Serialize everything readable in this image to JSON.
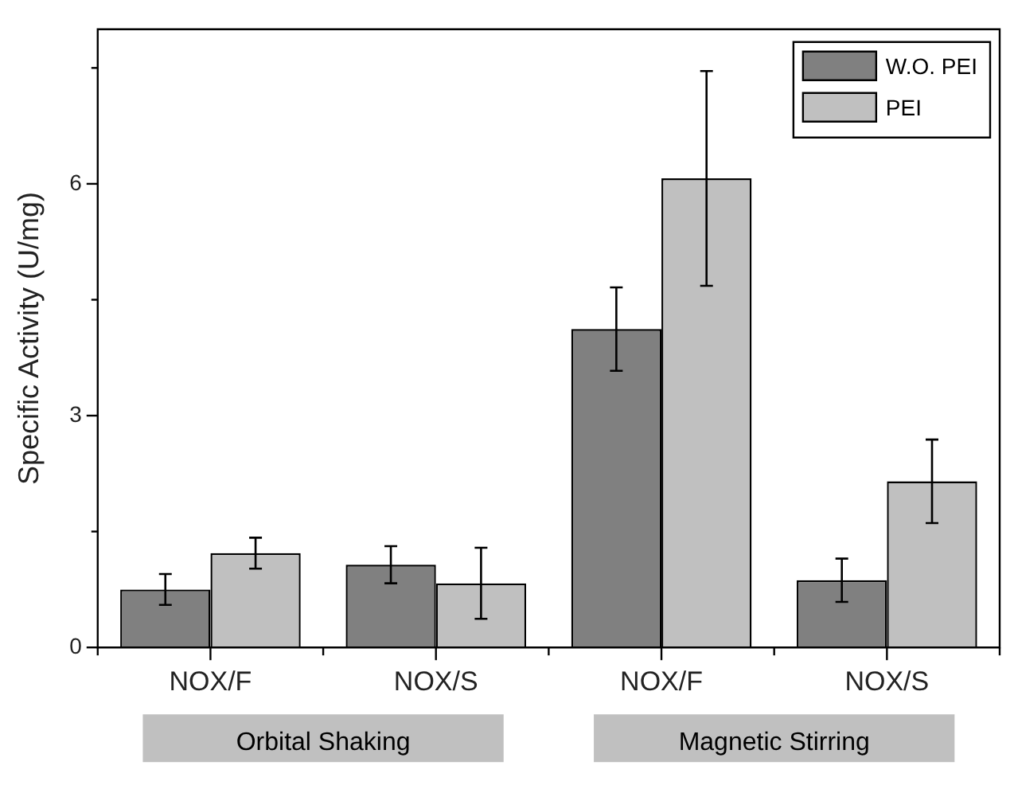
{
  "chart_data": {
    "type": "bar",
    "ylabel": "Specific Activity (U/mg)",
    "categories": [
      "NOX/F",
      "NOX/S",
      "NOX/F",
      "NOX/S"
    ],
    "series": [
      {
        "name": "W.O. PEI",
        "color": "#808080",
        "values": [
          0.75,
          1.07,
          4.12,
          0.87
        ],
        "errors": [
          0.2,
          0.24,
          0.54,
          0.28
        ]
      },
      {
        "name": "PEI",
        "color": "#c0c0c0",
        "values": [
          1.22,
          0.83,
          6.07,
          2.15
        ],
        "errors": [
          0.2,
          0.46,
          1.39,
          0.54
        ]
      }
    ],
    "ylim": [
      0,
      8
    ],
    "yticks": [
      0,
      {
        "value": 1.5,
        "label": null
      },
      3,
      {
        "value": 4.5,
        "label": null
      },
      6,
      {
        "value": 7.5,
        "label": null
      }
    ],
    "grid": false,
    "legend": "top right",
    "annotations": [
      "Orbital Shaking",
      "Magnetic Stirring"
    ]
  }
}
